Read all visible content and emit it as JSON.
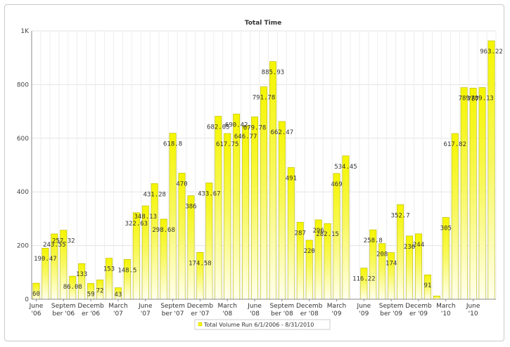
{
  "chart_data": {
    "type": "bar",
    "title": "Total Time",
    "xlabel": "",
    "ylabel": "",
    "ylim": [
      0,
      1000
    ],
    "yticks": [
      "0",
      "200",
      "400",
      "600",
      "800",
      "1K"
    ],
    "grid": true,
    "legend_placement": "bottom-center",
    "legend": "Total Volume Run 6/1/2006 - 8/31/2010",
    "x_tick_labels": [
      {
        "index": 0,
        "lines": [
          "June",
          "'06"
        ]
      },
      {
        "index": 3,
        "lines": [
          "Septem",
          "ber '06"
        ]
      },
      {
        "index": 6,
        "lines": [
          "Decemb",
          "er '06"
        ]
      },
      {
        "index": 9,
        "lines": [
          "March",
          "'07"
        ]
      },
      {
        "index": 12,
        "lines": [
          "June",
          "'07"
        ]
      },
      {
        "index": 15,
        "lines": [
          "Septem",
          "ber '07"
        ]
      },
      {
        "index": 18,
        "lines": [
          "Decemb",
          "er '07"
        ]
      },
      {
        "index": 21,
        "lines": [
          "March",
          "'08"
        ]
      },
      {
        "index": 24,
        "lines": [
          "June",
          "'08"
        ]
      },
      {
        "index": 27,
        "lines": [
          "Septem",
          "ber '08"
        ]
      },
      {
        "index": 30,
        "lines": [
          "Decemb",
          "er '08"
        ]
      },
      {
        "index": 33,
        "lines": [
          "March",
          "'09"
        ]
      },
      {
        "index": 36,
        "lines": [
          "June",
          "'09"
        ]
      },
      {
        "index": 39,
        "lines": [
          "Septem",
          "ber '09"
        ]
      },
      {
        "index": 42,
        "lines": [
          "Decemb",
          "er '09"
        ]
      },
      {
        "index": 45,
        "lines": [
          "March",
          "'10"
        ]
      },
      {
        "index": 48,
        "lines": [
          "June",
          "'10"
        ]
      }
    ],
    "series": [
      {
        "name": "Total Volume Run 6/1/2006 - 8/31/2010",
        "color": "#f5f500",
        "values": [
          60,
          190.47,
          243.55,
          257.32,
          86.08,
          133,
          59,
          72,
          153,
          43,
          148.5,
          322.63,
          348.13,
          431.28,
          298.68,
          618.8,
          470,
          386,
          174.58,
          433.67,
          682.05,
          617.75,
          690.42,
          646.77,
          679.78,
          791.78,
          885.93,
          662.47,
          491,
          287,
          220,
          296,
          282.15,
          469,
          534.45,
          0,
          116.22,
          258.8,
          208,
          174,
          352.7,
          236,
          244,
          91,
          12,
          305,
          617.82,
          789,
          787,
          789.13,
          963.22
        ],
        "labels": [
          "60",
          "190.47",
          "243.55",
          "257.32",
          "86.08",
          "133",
          "59",
          "72",
          "153",
          "43",
          "148.5",
          "322.63",
          "348.13",
          "431.28",
          "298.68",
          "618.8",
          "470",
          "386",
          "174.58",
          "433.67",
          "682.05",
          "617.75",
          "690.42",
          "646.77",
          "679.78",
          "791.78",
          "885.93",
          "662.47",
          "491",
          "287",
          "220",
          "296",
          "282.15",
          "469",
          "534.45",
          "",
          "116.22",
          "258.8",
          "208",
          "174",
          "352.7",
          "236",
          "244",
          "91",
          "",
          "305",
          "617.82",
          "789",
          "787",
          "789.13",
          "963.22"
        ]
      }
    ]
  }
}
